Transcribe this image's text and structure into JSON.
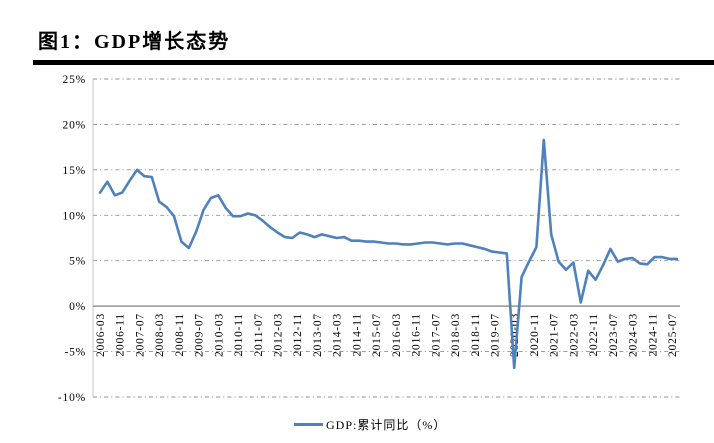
{
  "header": {
    "title": "图1：GDP增长态势"
  },
  "chart_data": {
    "type": "line",
    "title": "图1：GDP增长态势",
    "legend": "GDP:累计同比（%）",
    "line_color": "#4f81bd",
    "grid": "horizontal dash-dot gridlines on, vertical off",
    "legend_position": "bottom-center",
    "ylim": [
      -10,
      25
    ],
    "ytick_values": [
      25,
      20,
      15,
      10,
      5,
      0,
      -5,
      -10
    ],
    "ytick_labels": [
      "25%",
      "20%",
      "15%",
      "10%",
      "5%",
      "0%",
      "-5%",
      "-10%"
    ],
    "xtick_labels": [
      "2006-03",
      "2006-11",
      "2007-07",
      "2008-03",
      "2008-11",
      "2009-07",
      "2010-03",
      "2010-11",
      "2011-07",
      "2012-03",
      "2012-11",
      "2013-07",
      "2014-03",
      "2014-11",
      "2015-07",
      "2016-03",
      "2016-11",
      "2017-07",
      "2018-03",
      "2018-11",
      "2019-07",
      "2020-03",
      "2020-11",
      "2021-07",
      "2022-03",
      "2022-11",
      "2023-07",
      "2024-03",
      "2024-11",
      "2025-07"
    ],
    "x": [
      "2006-03",
      "2006-06",
      "2006-09",
      "2006-12",
      "2007-03",
      "2007-06",
      "2007-09",
      "2007-12",
      "2008-03",
      "2008-06",
      "2008-09",
      "2008-12",
      "2009-03",
      "2009-06",
      "2009-09",
      "2009-12",
      "2010-03",
      "2010-06",
      "2010-09",
      "2010-12",
      "2011-03",
      "2011-06",
      "2011-09",
      "2011-12",
      "2012-03",
      "2012-06",
      "2012-09",
      "2012-12",
      "2013-03",
      "2013-06",
      "2013-09",
      "2013-12",
      "2014-03",
      "2014-06",
      "2014-09",
      "2014-12",
      "2015-03",
      "2015-06",
      "2015-09",
      "2015-12",
      "2016-03",
      "2016-06",
      "2016-09",
      "2016-12",
      "2017-03",
      "2017-06",
      "2017-09",
      "2017-12",
      "2018-03",
      "2018-06",
      "2018-09",
      "2018-12",
      "2019-03",
      "2019-06",
      "2019-09",
      "2019-12",
      "2020-03",
      "2020-06",
      "2020-09",
      "2020-12",
      "2021-03",
      "2021-06",
      "2021-09",
      "2021-12",
      "2022-03",
      "2022-06",
      "2022-09",
      "2022-12",
      "2023-03",
      "2023-06",
      "2023-09",
      "2023-12",
      "2024-03",
      "2024-06",
      "2024-09",
      "2024-12",
      "2025-03",
      "2025-06",
      "2025-09"
    ],
    "values": [
      12.5,
      13.7,
      12.2,
      12.5,
      13.8,
      15.0,
      14.3,
      14.2,
      11.5,
      10.9,
      9.9,
      7.1,
      6.4,
      8.2,
      10.6,
      11.9,
      12.2,
      10.8,
      9.9,
      9.9,
      10.2,
      10.0,
      9.4,
      8.7,
      8.1,
      7.6,
      7.5,
      8.1,
      7.9,
      7.6,
      7.9,
      7.7,
      7.5,
      7.6,
      7.2,
      7.2,
      7.1,
      7.1,
      7.0,
      6.9,
      6.9,
      6.8,
      6.8,
      6.9,
      7.0,
      7.0,
      6.9,
      6.8,
      6.9,
      6.9,
      6.7,
      6.5,
      6.3,
      6.0,
      5.9,
      5.8,
      -6.8,
      3.2,
      4.9,
      6.5,
      18.3,
      7.9,
      4.9,
      4.0,
      4.8,
      0.4,
      3.9,
      2.9,
      4.5,
      6.3,
      4.9,
      5.2,
      5.3,
      4.7,
      4.6,
      5.4,
      5.4,
      5.2,
      5.2
    ]
  }
}
